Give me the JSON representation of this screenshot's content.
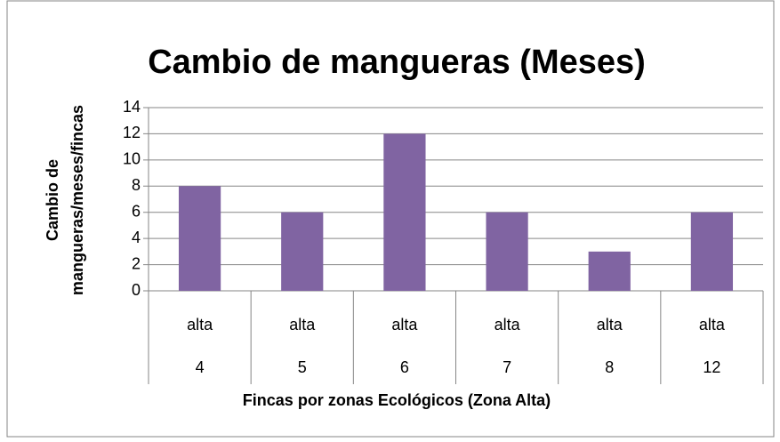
{
  "chart_data": {
    "type": "bar",
    "title": "Cambio de mangueras (Meses)",
    "y_label": [
      "Cambio de",
      "mangueras/meses/fincas"
    ],
    "x_label": "Fincas por zonas Ecológicos (Zona Alta)",
    "categories": [
      [
        "alta",
        "4"
      ],
      [
        "alta",
        "5"
      ],
      [
        "alta",
        "6"
      ],
      [
        "alta",
        "7"
      ],
      [
        "alta",
        "8"
      ],
      [
        "alta",
        "12"
      ]
    ],
    "values": [
      8,
      6,
      12,
      6,
      3,
      6
    ],
    "color": "#8064a2",
    "ylim": [
      0,
      14
    ],
    "yticks": [
      0,
      2,
      4,
      6,
      8,
      10,
      12,
      14
    ],
    "grid": true
  }
}
